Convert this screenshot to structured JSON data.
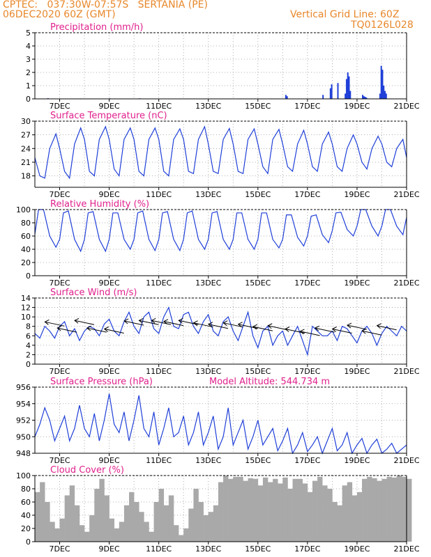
{
  "header": {
    "line1": "CPTEC:   037:30W-07:57S   SERTANIA (PE)",
    "line2": "06DEC2020 60Z (GMT)",
    "grid_note": "Vertical Grid Line: 60Z",
    "code": "TQ0126L028",
    "model_altitude": "Model Altitude: 544.734 m"
  },
  "colors": {
    "header": "#e8872a",
    "title": "#e0208c",
    "line": "#1f3fd8",
    "cloud": "#a9a9a9",
    "axis": "#000000"
  },
  "x_ticks": [
    "7DEC",
    "9DEC",
    "11DEC",
    "13DEC",
    "15DEC",
    "17DEC",
    "19DEC",
    "21DEC"
  ],
  "chart_data": [
    {
      "type": "bar",
      "title": "Precipitation (mm/h)",
      "ylim": [
        0,
        5
      ],
      "yticks": [
        "0",
        "1",
        "2",
        "3",
        "4",
        "5"
      ],
      "x": [
        0.5,
        1.8,
        3.0,
        4.2,
        10.1,
        10.15,
        11.6,
        11.9,
        11.95,
        12.2,
        12.5,
        12.55,
        12.6,
        12.65,
        12.7,
        13.2,
        13.25,
        13.3,
        13.35,
        13.9,
        13.95,
        14.0,
        14.05,
        14.1,
        14.15
      ],
      "values": [
        0.05,
        0.03,
        0.04,
        0.04,
        0.3,
        0.2,
        0.3,
        0.8,
        1.1,
        1.2,
        0.4,
        1.5,
        2.0,
        1.7,
        0.6,
        0.3,
        0.2,
        0.15,
        0.1,
        0.4,
        2.5,
        2.2,
        1.0,
        0.6,
        0.4
      ]
    },
    {
      "type": "line",
      "title": "Surface Temperature (nC)",
      "ylim": [
        15.5,
        30
      ],
      "yticks": [
        "18",
        "21",
        "24",
        "27",
        "30"
      ],
      "x": [
        0,
        0.2,
        0.4,
        0.6,
        0.85,
        1.0,
        1.2,
        1.4,
        1.6,
        1.85,
        2.0,
        2.2,
        2.4,
        2.6,
        2.85,
        3.0,
        3.2,
        3.4,
        3.6,
        3.85,
        4.0,
        4.2,
        4.4,
        4.6,
        4.85,
        5.0,
        5.2,
        5.4,
        5.6,
        5.85,
        6.0,
        6.2,
        6.4,
        6.6,
        6.85,
        7.0,
        7.2,
        7.4,
        7.6,
        7.85,
        8.0,
        8.2,
        8.4,
        8.6,
        8.85,
        9.0,
        9.2,
        9.4,
        9.6,
        9.85,
        10.0,
        10.2,
        10.4,
        10.6,
        10.85,
        11.0,
        11.2,
        11.4,
        11.6,
        11.85,
        12.0,
        12.2,
        12.4,
        12.6,
        12.85,
        13.0,
        13.2,
        13.4,
        13.6,
        13.85,
        14.0,
        14.2,
        14.4,
        14.6,
        14.85,
        15.0
      ],
      "values": [
        22,
        18,
        17.5,
        24,
        27.2,
        24,
        19,
        17.5,
        25,
        28.5,
        26,
        19,
        18,
        26,
        28.8,
        26,
        19.5,
        18,
        26,
        28.5,
        26,
        19,
        18,
        26,
        28.5,
        26,
        19,
        18,
        26,
        28.3,
        26,
        19,
        18.5,
        26,
        28.8,
        25,
        19,
        18.5,
        26,
        28.4,
        25,
        19,
        18.5,
        26,
        28.3,
        25,
        20,
        18.5,
        26,
        28.2,
        25,
        20,
        19,
        25,
        28,
        25,
        20,
        19,
        25,
        27.6,
        25,
        20,
        19,
        24,
        27,
        25,
        21,
        19.5,
        24,
        26.7,
        25,
        21,
        20,
        24,
        26,
        22
      ]
    },
    {
      "type": "line",
      "title": "Relative Humidity (%)",
      "ylim": [
        0,
        100
      ],
      "yticks": [
        "0",
        "20",
        "40",
        "60",
        "80",
        "100"
      ],
      "x": [
        0,
        0.15,
        0.35,
        0.6,
        0.85,
        1.0,
        1.15,
        1.35,
        1.6,
        1.85,
        2.0,
        2.15,
        2.35,
        2.6,
        2.85,
        3.0,
        3.15,
        3.35,
        3.6,
        3.85,
        4.0,
        4.15,
        4.35,
        4.6,
        4.85,
        5.0,
        5.15,
        5.35,
        5.6,
        5.85,
        6.0,
        6.15,
        6.35,
        6.6,
        6.85,
        7.0,
        7.15,
        7.35,
        7.6,
        7.85,
        8.0,
        8.15,
        8.35,
        8.6,
        8.85,
        9.0,
        9.15,
        9.35,
        9.6,
        9.85,
        10.0,
        10.15,
        10.35,
        10.6,
        10.85,
        11.0,
        11.15,
        11.35,
        11.6,
        11.85,
        12.0,
        12.15,
        12.35,
        12.6,
        12.85,
        13.0,
        13.15,
        13.35,
        13.6,
        13.85,
        14.0,
        14.15,
        14.35,
        14.6,
        14.85,
        15.0
      ],
      "values": [
        63,
        100,
        100,
        60,
        43,
        55,
        95,
        98,
        55,
        37,
        55,
        95,
        97,
        55,
        37,
        55,
        95,
        95,
        55,
        40,
        55,
        95,
        98,
        55,
        38,
        55,
        95,
        97,
        55,
        38,
        55,
        95,
        98,
        55,
        40,
        55,
        95,
        97,
        55,
        40,
        55,
        95,
        95,
        55,
        40,
        55,
        95,
        95,
        55,
        42,
        55,
        92,
        92,
        58,
        45,
        60,
        90,
        92,
        62,
        50,
        68,
        95,
        96,
        70,
        60,
        75,
        100,
        100,
        75,
        60,
        75,
        100,
        100,
        75,
        62,
        88
      ]
    },
    {
      "type": "line",
      "title": "Surface Wind (m/s)",
      "ylim": [
        0,
        14
      ],
      "yticks": [
        "0",
        "2",
        "4",
        "6",
        "8",
        "10",
        "12",
        "14"
      ],
      "x": [
        0,
        0.2,
        0.4,
        0.6,
        0.8,
        1.0,
        1.2,
        1.4,
        1.6,
        1.8,
        2.0,
        2.2,
        2.4,
        2.6,
        2.8,
        3.0,
        3.2,
        3.4,
        3.6,
        3.8,
        4.0,
        4.2,
        4.4,
        4.6,
        4.8,
        5.0,
        5.2,
        5.4,
        5.6,
        5.8,
        6.0,
        6.2,
        6.4,
        6.6,
        6.8,
        7.0,
        7.2,
        7.4,
        7.6,
        7.8,
        8.0,
        8.2,
        8.4,
        8.6,
        8.8,
        9.0,
        9.2,
        9.4,
        9.6,
        9.8,
        10.0,
        10.2,
        10.4,
        10.6,
        10.8,
        11.0,
        11.2,
        11.4,
        11.6,
        11.8,
        12.0,
        12.2,
        12.4,
        12.6,
        12.8,
        13.0,
        13.2,
        13.4,
        13.6,
        13.8,
        14.0,
        14.2,
        14.4,
        14.6,
        14.8,
        15.0
      ],
      "values": [
        6.5,
        5.5,
        8,
        7,
        5.5,
        8,
        9,
        6,
        7.5,
        5,
        7,
        8,
        7.5,
        6,
        8.5,
        9.5,
        7,
        6,
        9,
        11,
        8,
        6.5,
        10,
        11,
        7.5,
        6.5,
        10,
        12,
        8,
        7.5,
        10.5,
        11,
        8,
        6.5,
        9,
        10.5,
        7,
        6,
        9,
        10,
        7,
        5,
        8,
        11,
        6,
        3.5,
        7,
        8,
        4,
        6,
        7,
        4,
        6,
        8,
        5,
        2,
        8,
        7,
        6,
        6,
        7,
        5,
        8,
        7.5,
        6,
        4.5,
        7,
        8,
        6.5,
        4,
        6.5,
        8,
        7,
        6,
        8,
        7
      ],
      "barbs": [
        {
          "x": 0.8,
          "speed": 8.5,
          "dir": "W"
        },
        {
          "x": 1.3,
          "speed": 7.2,
          "dir": "W"
        },
        {
          "x": 2.0,
          "speed": 8.8,
          "dir": "W"
        },
        {
          "x": 2.5,
          "speed": 7.2,
          "dir": "W"
        },
        {
          "x": 3.2,
          "speed": 7.0,
          "dir": "W"
        },
        {
          "x": 4.0,
          "speed": 8.7,
          "dir": "W"
        },
        {
          "x": 4.6,
          "speed": 8.8,
          "dir": "W"
        },
        {
          "x": 5.1,
          "speed": 8.8,
          "dir": "W"
        },
        {
          "x": 5.6,
          "speed": 8.6,
          "dir": "W"
        },
        {
          "x": 6.2,
          "speed": 8.8,
          "dir": "W"
        },
        {
          "x": 6.8,
          "speed": 8.3,
          "dir": "W"
        },
        {
          "x": 7.4,
          "speed": 8.0,
          "dir": "W"
        },
        {
          "x": 8.0,
          "speed": 8.3,
          "dir": "W"
        },
        {
          "x": 8.6,
          "speed": 8.0,
          "dir": "W"
        },
        {
          "x": 9.2,
          "speed": 7.5,
          "dir": "W"
        },
        {
          "x": 9.8,
          "speed": 7.7,
          "dir": "W"
        },
        {
          "x": 10.5,
          "speed": 7.0,
          "dir": "W"
        },
        {
          "x": 11.1,
          "speed": 6.5,
          "dir": "W"
        },
        {
          "x": 11.7,
          "speed": 7.2,
          "dir": "W"
        },
        {
          "x": 12.4,
          "speed": 7.0,
          "dir": "W"
        },
        {
          "x": 13.0,
          "speed": 7.8,
          "dir": "W"
        },
        {
          "x": 13.6,
          "speed": 6.6,
          "dir": "W"
        },
        {
          "x": 14.2,
          "speed": 7.7,
          "dir": "W"
        }
      ]
    },
    {
      "type": "line",
      "title": "Surface Pressure (hPa)",
      "ylim": [
        948,
        956
      ],
      "yticks": [
        "948",
        "950",
        "952",
        "954",
        "956"
      ],
      "x": [
        0,
        0.2,
        0.4,
        0.6,
        0.8,
        1.0,
        1.2,
        1.4,
        1.6,
        1.8,
        2.0,
        2.2,
        2.4,
        2.6,
        2.8,
        3.0,
        3.2,
        3.4,
        3.6,
        3.8,
        4.0,
        4.2,
        4.4,
        4.6,
        4.8,
        5.0,
        5.2,
        5.4,
        5.6,
        5.8,
        6.0,
        6.2,
        6.4,
        6.6,
        6.8,
        7.0,
        7.2,
        7.4,
        7.6,
        7.8,
        8.0,
        8.2,
        8.4,
        8.6,
        8.8,
        9.0,
        9.2,
        9.4,
        9.6,
        9.8,
        10.0,
        10.2,
        10.4,
        10.6,
        10.8,
        11.0,
        11.2,
        11.4,
        11.6,
        11.8,
        12.0,
        12.2,
        12.4,
        12.6,
        12.8,
        13.0,
        13.2,
        13.4,
        13.6,
        13.8,
        14.0,
        14.2,
        14.4,
        14.6,
        14.8,
        15.0
      ],
      "values": [
        950,
        951.5,
        953.5,
        952,
        949.5,
        951,
        952.5,
        949.5,
        951,
        953.8,
        951,
        950,
        952.8,
        949.5,
        952,
        955.2,
        951.5,
        950.5,
        953,
        949.5,
        952,
        955,
        951,
        950,
        953,
        949,
        951,
        953.5,
        950,
        950.5,
        952.5,
        949,
        950.5,
        953,
        949,
        950.5,
        952.5,
        948.5,
        950,
        953.5,
        949,
        950.5,
        952,
        948.5,
        950,
        952,
        949,
        950,
        951,
        948.3,
        949.5,
        951,
        948,
        949,
        950.5,
        948.2,
        949,
        950,
        948,
        949.5,
        951,
        948.3,
        949,
        950.5,
        948,
        949,
        949.8,
        948,
        949,
        949.7,
        948,
        948.5,
        949.2,
        948,
        948.5,
        949
      ]
    },
    {
      "type": "bar",
      "title": "Cloud Cover (%)",
      "ylim": [
        0,
        100
      ],
      "yticks": [
        "0",
        "20",
        "40",
        "60",
        "80",
        "100"
      ],
      "x": [
        0,
        0.2,
        0.4,
        0.6,
        0.8,
        1.0,
        1.2,
        1.4,
        1.6,
        1.8,
        2.0,
        2.2,
        2.4,
        2.6,
        2.8,
        3.0,
        3.2,
        3.4,
        3.6,
        3.8,
        4.0,
        4.2,
        4.4,
        4.6,
        4.8,
        5.0,
        5.2,
        5.4,
        5.6,
        5.8,
        6.0,
        6.2,
        6.4,
        6.6,
        6.8,
        7.0,
        7.2,
        7.4,
        7.6,
        7.8,
        8.0,
        8.2,
        8.4,
        8.6,
        8.8,
        9.0,
        9.2,
        9.4,
        9.6,
        9.8,
        10.0,
        10.2,
        10.4,
        10.6,
        10.8,
        11.0,
        11.2,
        11.4,
        11.6,
        11.8,
        12.0,
        12.2,
        12.4,
        12.6,
        12.8,
        13.0,
        13.2,
        13.4,
        13.6,
        13.8,
        14.0,
        14.2,
        14.4,
        14.6,
        14.8,
        15.0
      ],
      "values": [
        75,
        90,
        60,
        30,
        20,
        35,
        70,
        85,
        55,
        25,
        15,
        40,
        80,
        95,
        70,
        35,
        20,
        30,
        55,
        75,
        60,
        45,
        30,
        15,
        60,
        80,
        55,
        70,
        25,
        10,
        20,
        50,
        80,
        60,
        40,
        45,
        55,
        90,
        100,
        95,
        98,
        98,
        92,
        96,
        95,
        85,
        97,
        90,
        95,
        88,
        97,
        80,
        95,
        95,
        88,
        75,
        92,
        98,
        85,
        80,
        60,
        55,
        85,
        90,
        70,
        75,
        95,
        98,
        96,
        92,
        95,
        98,
        97,
        100,
        98,
        95
      ]
    }
  ]
}
